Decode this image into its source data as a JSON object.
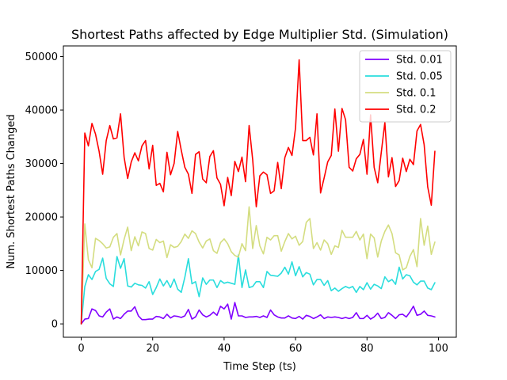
{
  "chart_data": {
    "type": "line",
    "title": "Shortest Paths affected by Edge Multiplier Std. (Simulation)",
    "xlabel": "Time Step (ts)",
    "ylabel": "Num. Shortest Paths Changed",
    "xlim": [
      -5,
      105
    ],
    "ylim": [
      -2500,
      52000
    ],
    "xticks": [
      0,
      20,
      40,
      60,
      80,
      100
    ],
    "yticks": [
      0,
      10000,
      20000,
      30000,
      40000,
      50000
    ],
    "grid": false,
    "legend_position": "top-right",
    "x": [
      0,
      1,
      2,
      3,
      4,
      5,
      6,
      7,
      8,
      9,
      10,
      11,
      12,
      13,
      14,
      15,
      16,
      17,
      18,
      19,
      20,
      21,
      22,
      23,
      24,
      25,
      26,
      27,
      28,
      29,
      30,
      31,
      32,
      33,
      34,
      35,
      36,
      37,
      38,
      39,
      40,
      41,
      42,
      43,
      44,
      45,
      46,
      47,
      48,
      49,
      50,
      51,
      52,
      53,
      54,
      55,
      56,
      57,
      58,
      59,
      60,
      61,
      62,
      63,
      64,
      65,
      66,
      67,
      68,
      69,
      70,
      71,
      72,
      73,
      74,
      75,
      76,
      77,
      78,
      79,
      80,
      81,
      82,
      83,
      84,
      85,
      86,
      87,
      88,
      89,
      90,
      91,
      92,
      93,
      94,
      95,
      96,
      97,
      98,
      99
    ],
    "series": [
      {
        "name": "Std. 0.01",
        "color": "#8000ff",
        "values": [
          0,
          900,
          1000,
          2800,
          2500,
          1500,
          1300,
          2200,
          2800,
          900,
          1300,
          1000,
          1800,
          2400,
          2400,
          3200,
          1500,
          800,
          800,
          900,
          900,
          1400,
          1300,
          1000,
          1800,
          1100,
          1500,
          1400,
          1200,
          1500,
          2700,
          900,
          1300,
          2600,
          1700,
          1300,
          1600,
          2200,
          1600,
          3300,
          2800,
          3700,
          900,
          4000,
          1500,
          1500,
          1200,
          1300,
          1300,
          1400,
          1200,
          1500,
          1200,
          2600,
          1700,
          1300,
          1100,
          1100,
          1500,
          1100,
          1000,
          1400,
          900,
          1600,
          1400,
          1000,
          1300,
          1700,
          1000,
          1300,
          1200,
          1300,
          1200,
          1000,
          1200,
          1000,
          1200,
          2100,
          1000,
          1000,
          1600,
          900,
          1300,
          2000,
          1000,
          1200,
          2100,
          1600,
          1000,
          1700,
          1800,
          1300,
          2200,
          3300,
          1600,
          1800,
          2400,
          1600,
          1500,
          1300
        ]
      },
      {
        "name": "Std. 0.05",
        "color": "#2adddd",
        "values": [
          0,
          7000,
          9200,
          8300,
          9800,
          10200,
          12300,
          8500,
          7500,
          7000,
          12600,
          10400,
          12200,
          7100,
          6900,
          7600,
          7300,
          7200,
          6700,
          7900,
          5500,
          6800,
          8400,
          7100,
          8100,
          6800,
          8400,
          6500,
          5900,
          8700,
          12200,
          7500,
          7900,
          5100,
          8600,
          7400,
          8200,
          8200,
          6800,
          8100,
          7600,
          7800,
          7600,
          7400,
          12900,
          6800,
          10100,
          6800,
          7000,
          7900,
          7900,
          6800,
          9800,
          9100,
          9000,
          8900,
          9500,
          10600,
          9300,
          11600,
          9000,
          10700,
          8800,
          9600,
          9300,
          7300,
          8300,
          8300,
          7200,
          8100,
          6200,
          6700,
          6100,
          6600,
          7000,
          6700,
          7000,
          5900,
          7000,
          6400,
          7700,
          6500,
          7400,
          7100,
          6600,
          8800,
          7900,
          8300,
          7400,
          10600,
          8400,
          9200,
          9000,
          7800,
          7300,
          8000,
          8000,
          6700,
          6400,
          7700
        ]
      },
      {
        "name": "Std. 0.1",
        "color": "#d4dd80",
        "values": [
          0,
          18700,
          12000,
          10500,
          16000,
          15600,
          15000,
          14200,
          14400,
          16200,
          16900,
          12900,
          15800,
          18100,
          13700,
          16300,
          14600,
          17200,
          16900,
          14100,
          13800,
          15800,
          15200,
          15500,
          12400,
          14800,
          14300,
          14500,
          15400,
          16800,
          16000,
          17400,
          16900,
          15300,
          14200,
          15500,
          15900,
          13700,
          13200,
          15200,
          15900,
          15000,
          13500,
          12800,
          12500,
          15000,
          13700,
          21900,
          14100,
          18400,
          14600,
          13100,
          16200,
          15700,
          16500,
          16500,
          13600,
          15400,
          16900,
          15900,
          16400,
          14700,
          15400,
          19000,
          19700,
          14100,
          15200,
          13800,
          15700,
          15000,
          13000,
          14600,
          14300,
          17500,
          16200,
          16200,
          16200,
          17300,
          15700,
          16800,
          12200,
          16800,
          16100,
          12500,
          15500,
          17300,
          18500,
          16900,
          13300,
          12900,
          10100,
          10500,
          12600,
          13900,
          10700,
          19700,
          14700,
          18300,
          13000,
          15300
        ]
      },
      {
        "name": "Std. 0.2",
        "color": "#ff0000",
        "values": [
          0,
          35700,
          33300,
          37500,
          35500,
          32300,
          28000,
          34300,
          37100,
          34600,
          34800,
          39300,
          31200,
          27200,
          30300,
          32000,
          30500,
          33300,
          34300,
          29000,
          33400,
          25900,
          26300,
          24700,
          32100,
          27900,
          30000,
          36000,
          32500,
          29300,
          28000,
          24400,
          31700,
          32200,
          27100,
          26400,
          31300,
          32400,
          27300,
          26100,
          22100,
          27400,
          24000,
          30400,
          28500,
          31200,
          26600,
          37100,
          30700,
          21900,
          27700,
          28400,
          27900,
          24400,
          24900,
          30200,
          25300,
          31100,
          33000,
          31500,
          36700,
          49400,
          34300,
          34300,
          34900,
          31600,
          39300,
          24500,
          27300,
          30300,
          31500,
          40200,
          32300,
          40300,
          38200,
          29300,
          28600,
          30900,
          31700,
          34500,
          28000,
          39100,
          29300,
          26400,
          32100,
          37700,
          27500,
          31100,
          25700,
          26800,
          31000,
          28500,
          30800,
          29800,
          36100,
          37300,
          33500,
          25600,
          22200,
          32300
        ]
      }
    ]
  }
}
